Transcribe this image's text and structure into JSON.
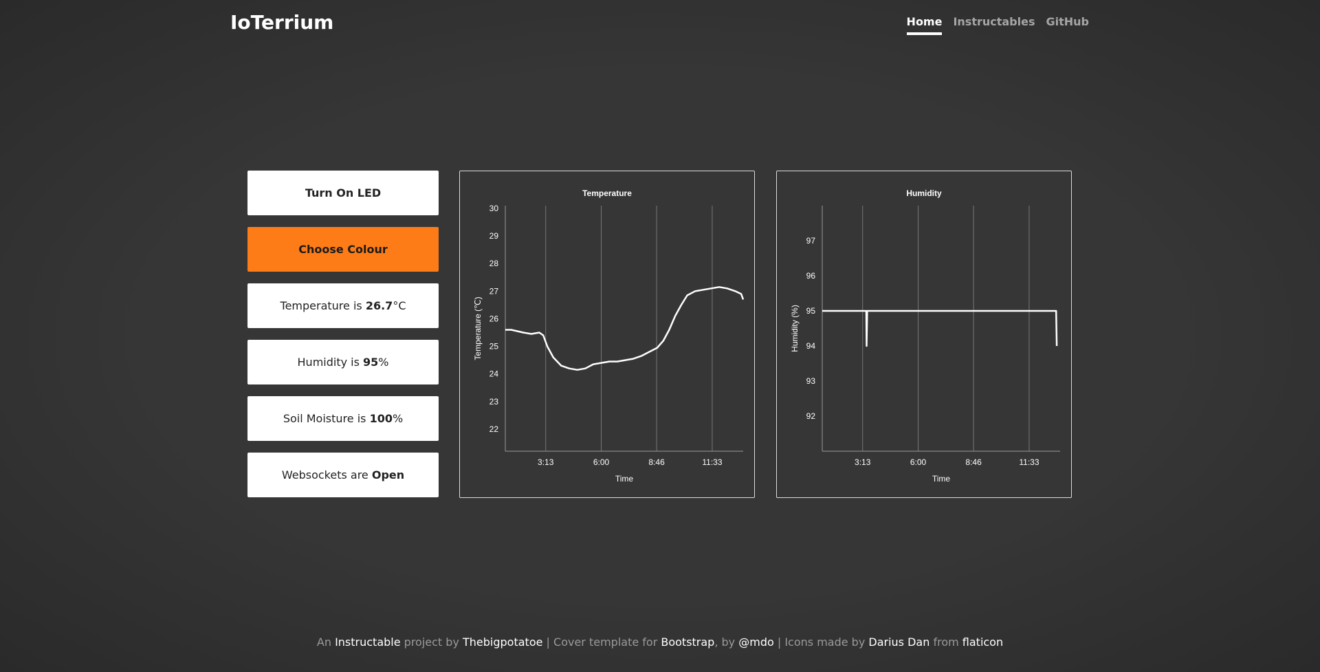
{
  "header": {
    "brand": "IoTerrium",
    "nav": [
      {
        "label": "Home",
        "active": true
      },
      {
        "label": "Instructables",
        "active": false
      },
      {
        "label": "GitHub",
        "active": false
      }
    ]
  },
  "controls": {
    "led_button": "Turn On LED",
    "colour_button": "Choose Colour",
    "temperature": {
      "prefix": "Temperature is ",
      "value": "26.7",
      "suffix": "°C"
    },
    "humidity": {
      "prefix": "Humidity is ",
      "value": "95",
      "suffix": "%"
    },
    "soil": {
      "prefix": "Soil Moisture is ",
      "value": "100",
      "suffix": "%"
    },
    "websockets": {
      "prefix": "Websockets are ",
      "value": "Open",
      "suffix": ""
    }
  },
  "colors": {
    "accent": "#fd7c17",
    "background": "#333333"
  },
  "chart_data": [
    {
      "type": "line",
      "title": "Temperature",
      "xlabel": "Time",
      "ylabel": "Temperature (℃)",
      "xticks": [
        {
          "t": "3:13",
          "h": 3.22
        },
        {
          "t": "6:00",
          "h": 6.0
        },
        {
          "t": "8:46",
          "h": 8.77
        },
        {
          "t": "11:33",
          "h": 11.55
        }
      ],
      "xlim": [
        1.2,
        13.1
      ],
      "yticks": [
        22,
        23,
        24,
        25,
        26,
        27,
        28,
        29,
        30
      ],
      "ylim": [
        21.2,
        30.1
      ],
      "series": [
        {
          "points": [
            [
              1.2,
              25.6
            ],
            [
              1.5,
              25.6
            ],
            [
              1.8,
              25.55
            ],
            [
              2.1,
              25.5
            ],
            [
              2.5,
              25.45
            ],
            [
              2.9,
              25.5
            ],
            [
              3.1,
              25.4
            ],
            [
              3.3,
              25.0
            ],
            [
              3.6,
              24.6
            ],
            [
              4.0,
              24.3
            ],
            [
              4.4,
              24.2
            ],
            [
              4.8,
              24.15
            ],
            [
              5.2,
              24.2
            ],
            [
              5.6,
              24.35
            ],
            [
              6.0,
              24.4
            ],
            [
              6.4,
              24.45
            ],
            [
              6.8,
              24.45
            ],
            [
              7.2,
              24.5
            ],
            [
              7.6,
              24.55
            ],
            [
              8.0,
              24.65
            ],
            [
              8.4,
              24.8
            ],
            [
              8.8,
              24.95
            ],
            [
              9.1,
              25.2
            ],
            [
              9.4,
              25.6
            ],
            [
              9.7,
              26.1
            ],
            [
              10.0,
              26.5
            ],
            [
              10.3,
              26.85
            ],
            [
              10.7,
              27.0
            ],
            [
              11.1,
              27.05
            ],
            [
              11.5,
              27.1
            ],
            [
              11.9,
              27.15
            ],
            [
              12.3,
              27.1
            ],
            [
              12.7,
              27.0
            ],
            [
              13.0,
              26.9
            ],
            [
              13.1,
              26.7
            ]
          ]
        }
      ]
    },
    {
      "type": "line",
      "title": "Humidity",
      "xlabel": "Time",
      "ylabel": "Humidity (%)",
      "xticks": [
        {
          "t": "3:13",
          "h": 3.22
        },
        {
          "t": "6:00",
          "h": 6.0
        },
        {
          "t": "8:46",
          "h": 8.77
        },
        {
          "t": "11:33",
          "h": 11.55
        }
      ],
      "xlim": [
        1.2,
        13.1
      ],
      "yticks": [
        92,
        93,
        94,
        95,
        96,
        97
      ],
      "ylim": [
        91,
        98
      ],
      "series": [
        {
          "points": [
            [
              1.2,
              95
            ],
            [
              3.4,
              95
            ],
            [
              3.42,
              94
            ],
            [
              3.45,
              95
            ],
            [
              12.9,
              95
            ],
            [
              12.93,
              94
            ]
          ]
        }
      ]
    }
  ],
  "footer": [
    {
      "text": "An ",
      "link": false
    },
    {
      "text": "Instructable",
      "link": true
    },
    {
      "text": " project by ",
      "link": false
    },
    {
      "text": "Thebigpotatoe",
      "link": true
    },
    {
      "text": " | Cover template for ",
      "link": false
    },
    {
      "text": "Bootstrap",
      "link": true
    },
    {
      "text": ", by ",
      "link": false
    },
    {
      "text": "@mdo",
      "link": true
    },
    {
      "text": " | Icons made by ",
      "link": false
    },
    {
      "text": "Darius Dan",
      "link": true
    },
    {
      "text": " from ",
      "link": false
    },
    {
      "text": "flaticon",
      "link": true
    }
  ]
}
